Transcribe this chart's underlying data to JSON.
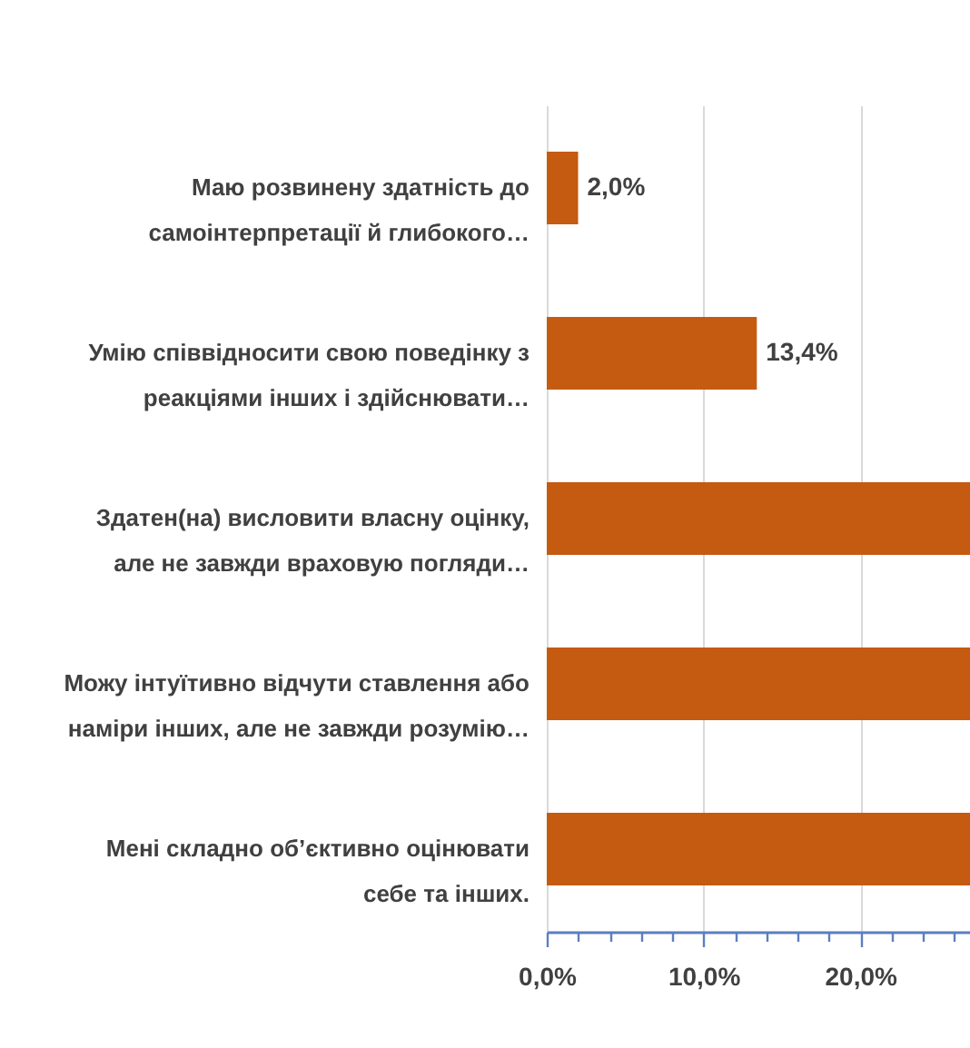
{
  "chart_data": {
    "type": "bar",
    "orientation": "horizontal",
    "categories": [
      "Маю розвинену здатність до самоінтерпретації й глибокого…",
      "Умію співвідносити свою поведінку з реакціями інших і здійснювати…",
      "Здатен(на) висловити власну оцінку, але не завжди враховую погляди…",
      "Можу інтуїтивно відчути ставлення або наміри інших, але не завжди розумію…",
      "Мені складно об’єктивно оцінювати себе та інших."
    ],
    "values": [
      2.0,
      13.4,
      27,
      27,
      27
    ],
    "value_labels": [
      "2,0%",
      "13,4%",
      null,
      null,
      null
    ],
    "color": "#c55a11",
    "xlim": [
      0,
      27
    ],
    "xticks": [
      {
        "value": 0,
        "label": "0,0%"
      },
      {
        "value": 2,
        "label": null
      },
      {
        "value": 4,
        "label": null
      },
      {
        "value": 6,
        "label": null
      },
      {
        "value": 8,
        "label": null
      },
      {
        "value": 10,
        "label": "10,0%"
      },
      {
        "value": 12,
        "label": null
      },
      {
        "value": 14,
        "label": null
      },
      {
        "value": 16,
        "label": null
      },
      {
        "value": 18,
        "label": null
      },
      {
        "value": 20,
        "label": "20,0%"
      },
      {
        "value": 22,
        "label": null
      },
      {
        "value": 24,
        "label": null
      },
      {
        "value": 26,
        "label": null
      }
    ],
    "grid": "x"
  }
}
